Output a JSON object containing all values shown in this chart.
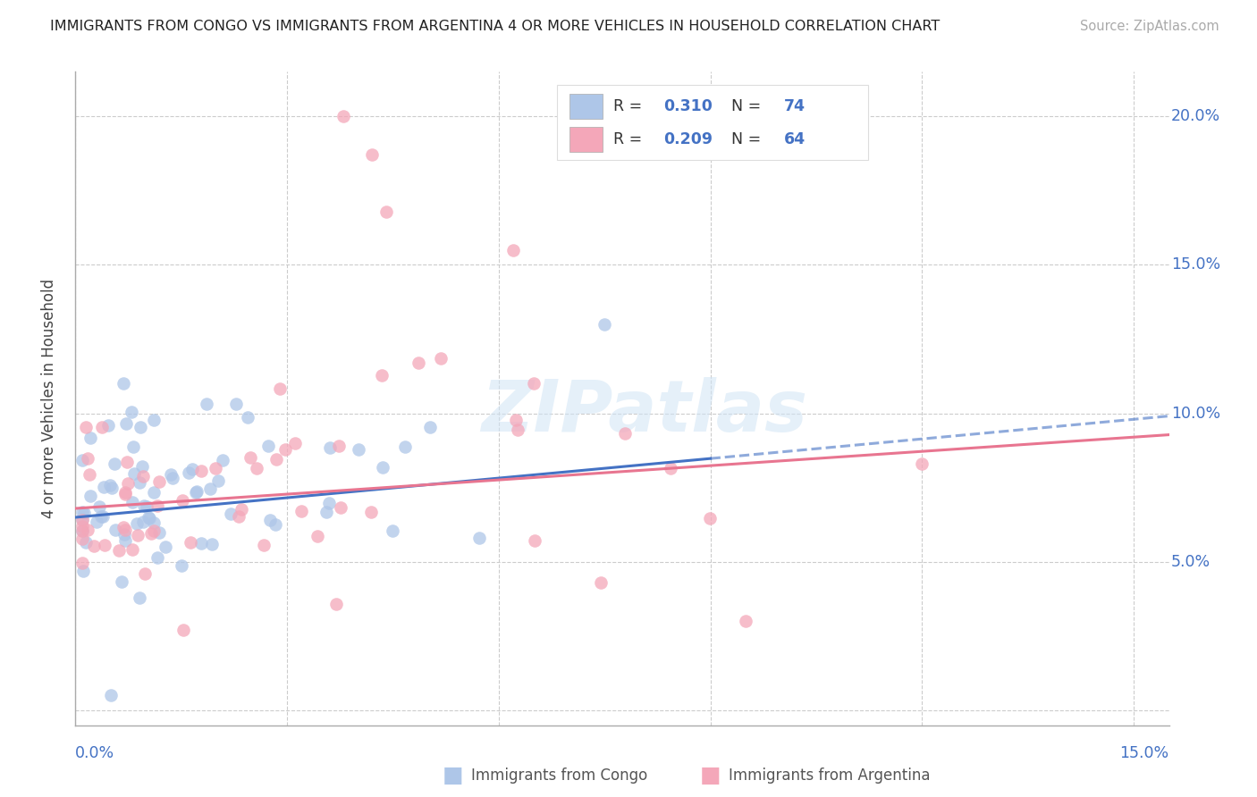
{
  "title": "IMMIGRANTS FROM CONGO VS IMMIGRANTS FROM ARGENTINA 4 OR MORE VEHICLES IN HOUSEHOLD CORRELATION CHART",
  "source": "Source: ZipAtlas.com",
  "ylabel": "4 or more Vehicles in Household",
  "xlim": [
    0.0,
    0.155
  ],
  "ylim": [
    -0.005,
    0.215
  ],
  "y_ticks": [
    0.0,
    0.05,
    0.1,
    0.15,
    0.2
  ],
  "y_tick_labels": [
    "",
    "5.0%",
    "10.0%",
    "15.0%",
    "20.0%"
  ],
  "x_ticks": [
    0.0,
    0.03,
    0.06,
    0.09,
    0.12,
    0.15
  ],
  "congo_color": "#aec6e8",
  "argentina_color": "#f4a7b9",
  "congo_line_color": "#4472c4",
  "argentina_line_color": "#e87590",
  "watermark": "ZIPatlas",
  "legend_label_congo": "Immigrants from Congo",
  "legend_label_argentina": "Immigrants from Argentina",
  "congo_R": "0.310",
  "congo_N": "74",
  "argentina_R": "0.209",
  "argentina_N": "64",
  "tick_color": "#4472c4",
  "axis_label_color": "#4472c4"
}
